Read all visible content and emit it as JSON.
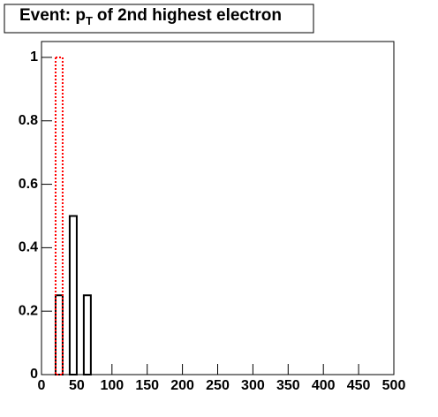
{
  "chart_data": {
    "type": "histogram",
    "title": "Event: p",
    "title_subscript": "T",
    "title_rest": "of 2nd highest electron",
    "bins": [
      0,
      10,
      20,
      30,
      40,
      50,
      60,
      70,
      80,
      90,
      100,
      110,
      120,
      130,
      140,
      150,
      160,
      170,
      180,
      190,
      200,
      210,
      220,
      230,
      240,
      250,
      260,
      270,
      280,
      290,
      300,
      310,
      320,
      330,
      340,
      350,
      360,
      370,
      380,
      390,
      400,
      410,
      420,
      430,
      440,
      450,
      460,
      470,
      480,
      490,
      500
    ],
    "series": [
      {
        "color": "#000000",
        "dashed": false,
        "counts": [
          0,
          0,
          0.25,
          0,
          0.5,
          0,
          0.25,
          0,
          0,
          0,
          0,
          0,
          0,
          0,
          0,
          0,
          0,
          0,
          0,
          0,
          0,
          0,
          0,
          0,
          0,
          0,
          0,
          0,
          0,
          0,
          0,
          0,
          0,
          0,
          0,
          0,
          0,
          0,
          0,
          0,
          0,
          0,
          0,
          0,
          0,
          0,
          0,
          0,
          0,
          0
        ]
      },
      {
        "color": "#ff0000",
        "dashed": true,
        "counts": [
          0,
          0,
          1,
          0,
          0,
          0,
          0,
          0,
          0,
          0,
          0,
          0,
          0,
          0,
          0,
          0,
          0,
          0,
          0,
          0,
          0,
          0,
          0,
          0,
          0,
          0,
          0,
          0,
          0,
          0,
          0,
          0,
          0,
          0,
          0,
          0,
          0,
          0,
          0,
          0,
          0,
          0,
          0,
          0,
          0,
          0,
          0,
          0,
          0,
          0
        ]
      }
    ],
    "xlim": [
      0,
      500
    ],
    "xticks": [
      0,
      50,
      100,
      150,
      200,
      250,
      300,
      350,
      400,
      450,
      500
    ],
    "ylim": [
      0,
      1.05
    ],
    "yticks": [
      0,
      0.2,
      0.4,
      0.6,
      0.8,
      1
    ]
  }
}
